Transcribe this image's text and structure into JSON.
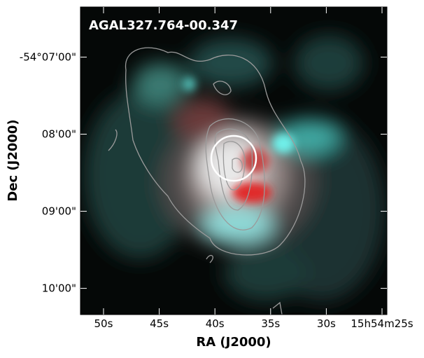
{
  "chart_data": {
    "type": "image",
    "title": "AGAL327.764-00.347",
    "x_label": "RA (J2000)",
    "y_label": "Dec (J2000)",
    "xlim": [
      52.07,
      24.56
    ],
    "xticks": [
      {
        "value": 50,
        "label": "50s"
      },
      {
        "value": 45,
        "label": "45s"
      },
      {
        "value": 40,
        "label": "40s"
      },
      {
        "value": 35,
        "label": "35s"
      },
      {
        "value": 30,
        "label": "30s"
      },
      {
        "value": 25,
        "label": "15h54m25s"
      }
    ],
    "ylim": [
      10.34,
      6.35
    ],
    "yticks": [
      {
        "value": 7,
        "label": "-54°07'00\""
      },
      {
        "value": 8,
        "label": "08'00\""
      },
      {
        "value": 9,
        "label": "09'00\""
      },
      {
        "value": 10,
        "label": "10'00\""
      }
    ]
  }
}
